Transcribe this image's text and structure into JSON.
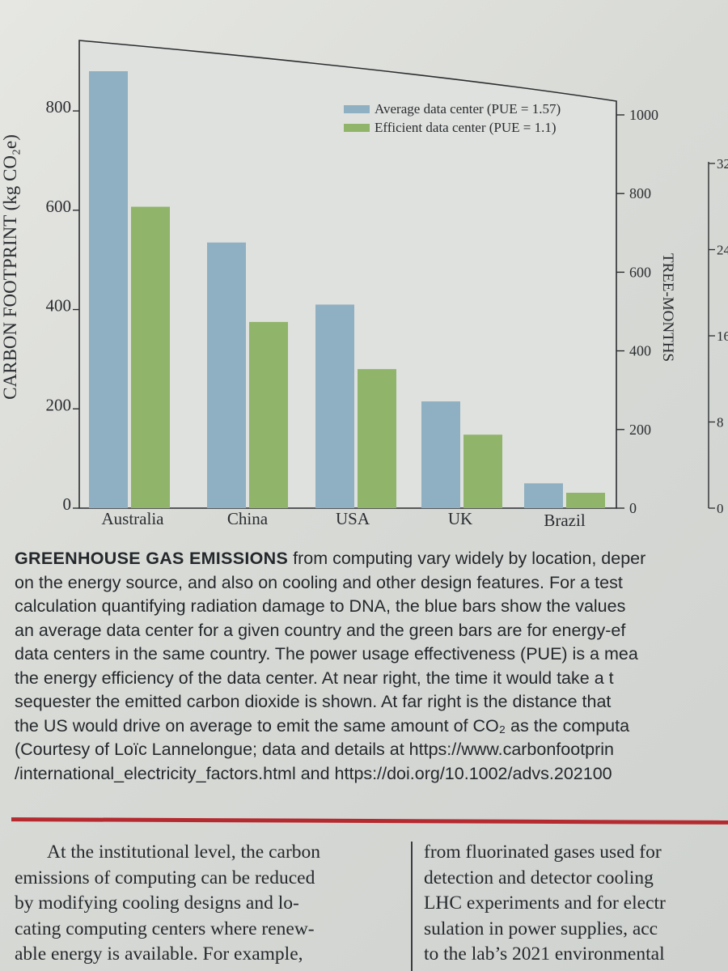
{
  "chart_data": {
    "type": "bar",
    "categories": [
      "Australia",
      "China",
      "USA",
      "UK",
      "Brazil"
    ],
    "series": [
      {
        "name": "Average data center (PUE = 1.57)",
        "color": "#8fb0c2",
        "values": [
          880,
          535,
          410,
          215,
          50
        ]
      },
      {
        "name": "Efficient data center (PUE = 1.1)",
        "color": "#8fb46a",
        "values": [
          607,
          375,
          280,
          148,
          31
        ]
      }
    ],
    "ylabel": "CARBON FOOTPRINT (kg CO₂e)",
    "yticks": [
      "0",
      "200",
      "400",
      "600",
      "800"
    ],
    "ylim": [
      0,
      900
    ],
    "y2label": "TREE-MONTHS",
    "y2ticks": [
      "0",
      "200",
      "400",
      "600",
      "800",
      "1000"
    ],
    "y3ticks": [
      "0",
      "8",
      "16",
      "24",
      "32"
    ],
    "legend": "top-right",
    "grid": false
  },
  "caption": {
    "heading": "GREENHOUSE GAS EMISSIONS",
    "lines": [
      " from computing vary widely by location, deper",
      "on the energy source, and also on cooling and other design features. For a test",
      "calculation quantifying radiation damage to DNA, the blue bars show the values",
      "an average data center for a given country and the green bars are for energy-ef",
      "data centers in the same country. The power usage effectiveness (PUE) is a mea",
      "the energy efficiency of the data center. At near right, the time it would take a t",
      "sequester the emitted carbon dioxide is shown. At far right is the distance that",
      "the US would drive on average to emit the same amount of CO₂ as the computa",
      "(Courtesy of Loïc Lannelongue; data and details at https://www.carbonfootprin",
      "/international_electricity_factors.html and https://doi.org/10.1002/advs.202100"
    ]
  },
  "body_left": [
    "At the institutional level, the carbon",
    "emissions of computing can be reduced",
    "by modifying cooling designs and lo-",
    "cating computing centers where renew-",
    "able energy is available. For example,"
  ],
  "body_right": [
    "from fluorinated gases used for",
    "detection and detector cooling",
    "LHC experiments and for electr",
    "sulation in power supplies, acc",
    "to the lab’s 2021 environmental"
  ]
}
